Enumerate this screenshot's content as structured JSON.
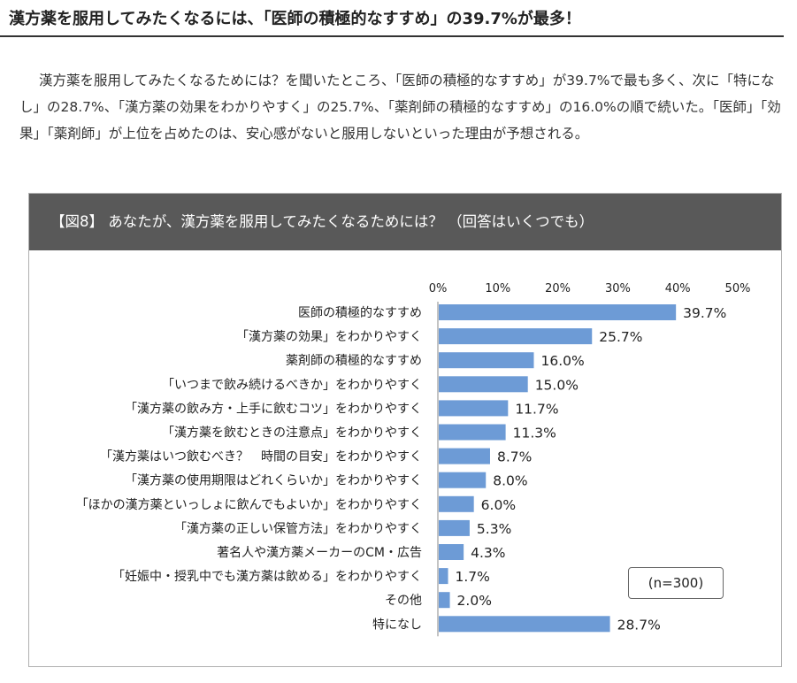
{
  "headline": "漢方薬を服用してみたくなるには、「医師の積極的なすすめ」の39.7%が最多！",
  "body_text": "漢方薬を服用してみたくなるためには？を聞いたところ、「医師の積極的なすすめ」が39.7%で最も多く、次に「特になし」の28.7%、「漢方薬の効果をわかりやすく」の25.7%、「薬剤師の積極的なすすめ」の16.0%の順で続いた。「医師」「効果」「薬剤師」が上位を占めたのは、安心感がないと服用しないといった理由が予想される。",
  "figure": {
    "title": "【図8】 あなたが、漢方薬を服用してみたくなるためには？ （回答はいくつでも）"
  },
  "sample_size": "(n=300)",
  "colors": {
    "bar": "#6d9bd6",
    "header": "#595959",
    "grid": "#aaaaaa"
  },
  "chart_data": {
    "type": "bar",
    "orientation": "horizontal",
    "title": "",
    "xlabel": "",
    "ylabel": "",
    "xlim": [
      0,
      50
    ],
    "ticks": [
      0,
      10,
      20,
      30,
      40,
      50
    ],
    "tick_labels": [
      "0%",
      "10%",
      "20%",
      "30%",
      "40%",
      "50%"
    ],
    "grid": false,
    "categories": [
      "医師の積極的なすすめ",
      "「漢方薬の効果」をわかりやすく",
      "薬剤師の積極的なすすめ",
      "「いつまで飲み続けるべきか」をわかりやすく",
      "「漢方薬の飲み方・上手に飲むコツ」をわかりやすく",
      "「漢方薬を飲むときの注意点」をわかりやすく",
      "「漢方薬はいつ飲むべき？　時間の目安」をわかりやすく",
      "「漢方薬の使用期限はどれくらいか」をわかりやすく",
      "「ほかの漢方薬といっしょに飲んでもよいか」をわかりやすく",
      "「漢方薬の正しい保管方法」をわかりやすく",
      "著名人や漢方薬メーカーのCM・広告",
      "「妊娠中・授乳中でも漢方薬は飲める」をわかりやすく",
      "その他",
      "特になし"
    ],
    "values": [
      39.7,
      25.7,
      16.0,
      15.0,
      11.7,
      11.3,
      8.7,
      8.0,
      6.0,
      5.3,
      4.3,
      1.7,
      2.0,
      28.7
    ],
    "value_labels": [
      "39.7%",
      "25.7%",
      "16.0%",
      "15.0%",
      "11.7%",
      "11.3%",
      "8.7%",
      "8.0%",
      "6.0%",
      "5.3%",
      "4.3%",
      "1.7%",
      "2.0%",
      "28.7%"
    ]
  }
}
